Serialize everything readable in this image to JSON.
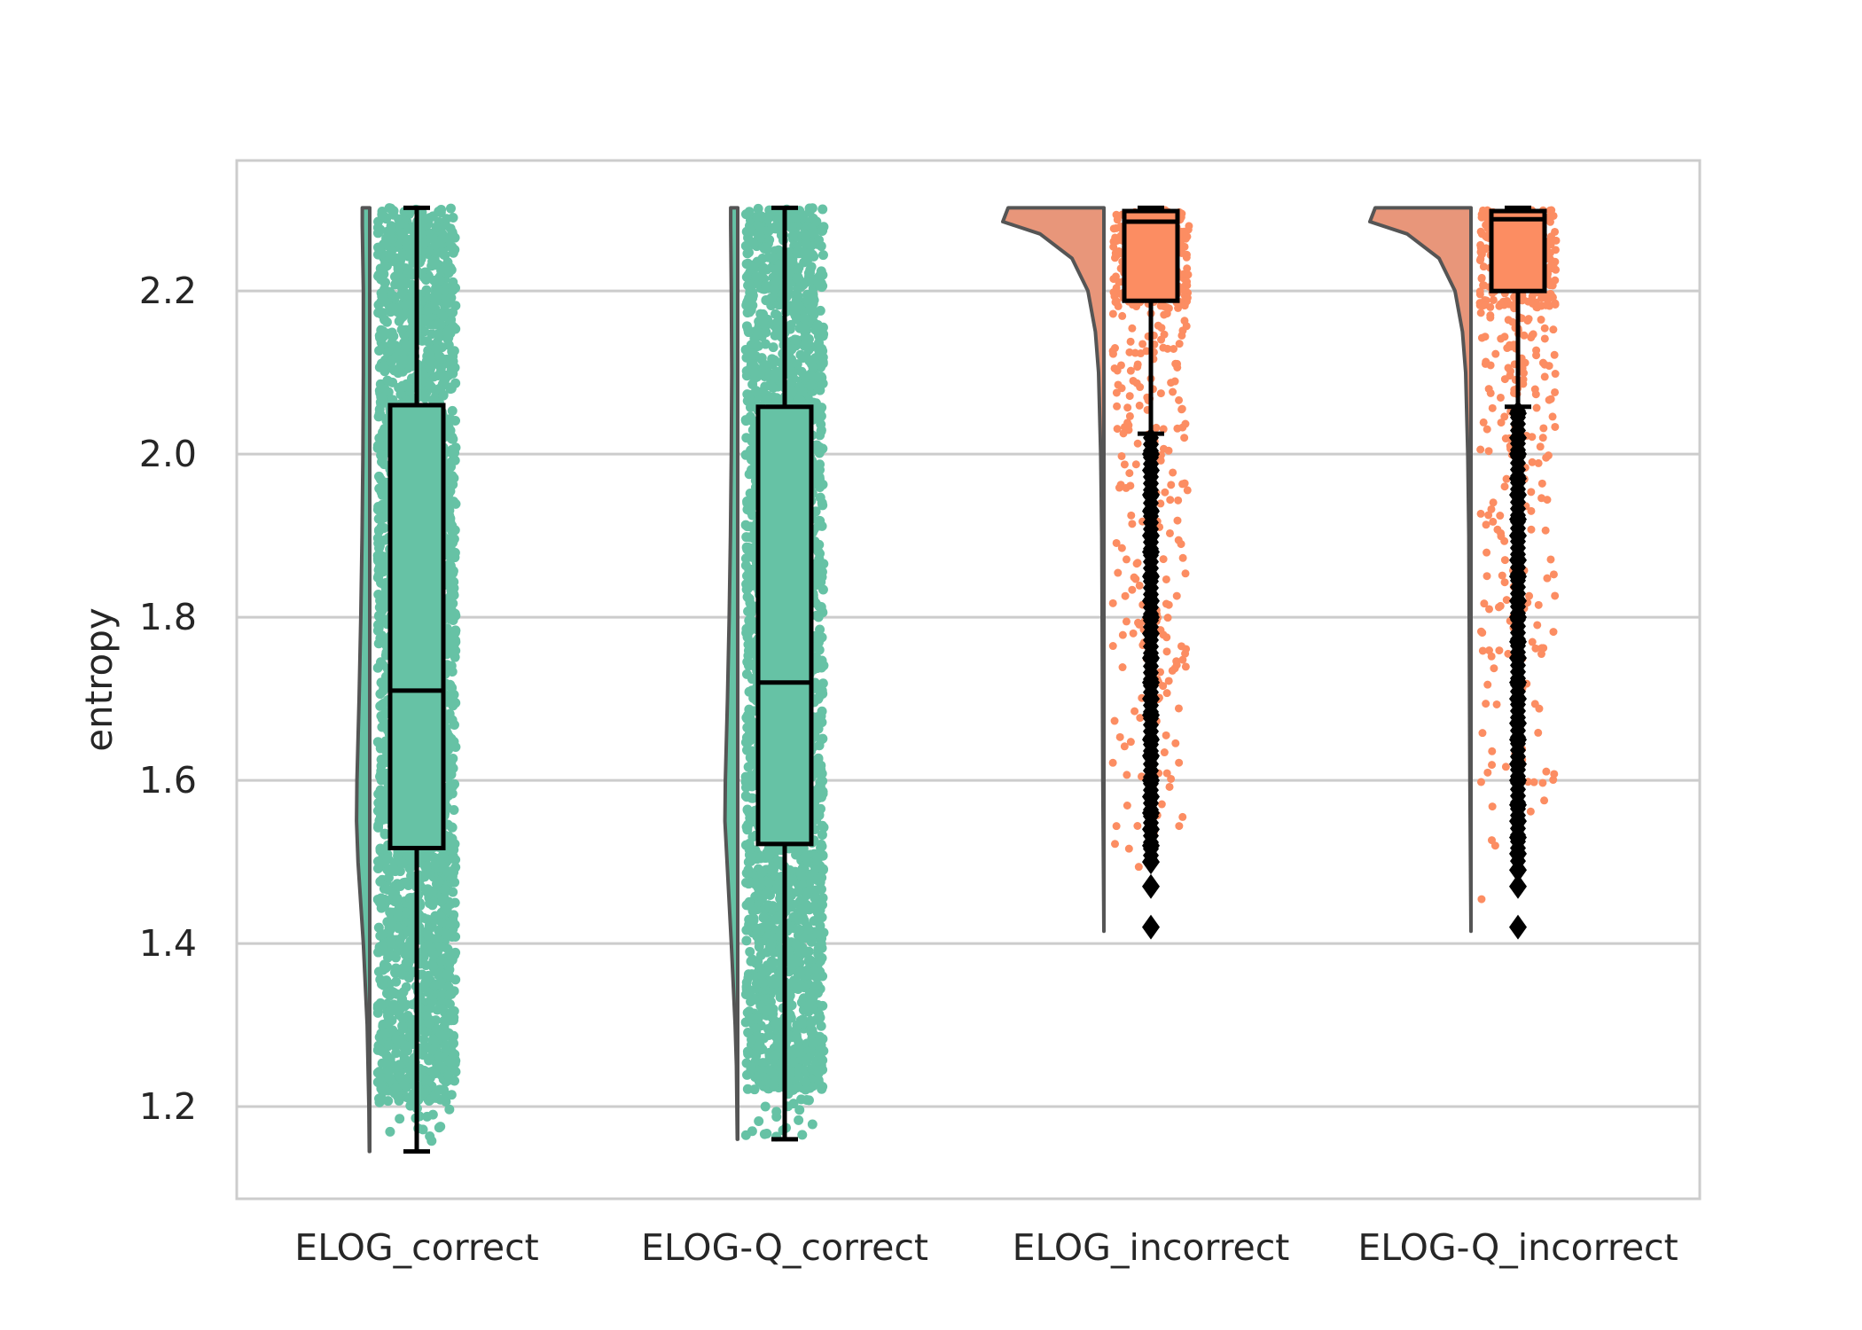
{
  "chart_data": {
    "type": "raincloud",
    "title": "",
    "xlabel": "",
    "ylabel": "entropy",
    "ylim": [
      1.087,
      2.36
    ],
    "yticks": [
      "1.2",
      "1.4",
      "1.6",
      "1.8",
      "2.0",
      "2.2"
    ],
    "grid": "horizontal",
    "legend": "none",
    "categories": [
      "ELOG_correct",
      "ELOG-Q_correct",
      "ELOG_incorrect",
      "ELOG-Q_incorrect"
    ],
    "colors": {
      "correct": "#66c2a5",
      "incorrect": "#fc8d62",
      "violin_incorrect": "#e8967a",
      "violin_edge": "#555555",
      "box_edge": "#000000",
      "grid": "#cccccc",
      "frame": "#cccccc"
    },
    "series": [
      {
        "category": "ELOG_correct",
        "group": "correct",
        "box": {
          "whisker_low": 1.145,
          "q1": 1.517,
          "median": 1.71,
          "q3": 2.06,
          "whisker_high": 2.302
        },
        "outliers": [],
        "points_min": 1.145,
        "points_max": 2.302,
        "density": [
          [
            1.145,
            0.02
          ],
          [
            1.2,
            0.04
          ],
          [
            1.3,
            0.12
          ],
          [
            1.4,
            0.3
          ],
          [
            1.5,
            0.55
          ],
          [
            1.55,
            0.62
          ],
          [
            1.6,
            0.6
          ],
          [
            1.7,
            0.5
          ],
          [
            1.8,
            0.42
          ],
          [
            1.9,
            0.36
          ],
          [
            2.0,
            0.32
          ],
          [
            2.1,
            0.3
          ],
          [
            2.2,
            0.3
          ],
          [
            2.28,
            0.35
          ],
          [
            2.302,
            0.35
          ]
        ]
      },
      {
        "category": "ELOG-Q_correct",
        "group": "correct",
        "box": {
          "whisker_low": 1.16,
          "q1": 1.522,
          "median": 1.72,
          "q3": 2.058,
          "whisker_high": 2.302
        },
        "outliers": [],
        "points_min": 1.16,
        "points_max": 2.302,
        "density": [
          [
            1.16,
            0.02
          ],
          [
            1.25,
            0.06
          ],
          [
            1.3,
            0.12
          ],
          [
            1.4,
            0.3
          ],
          [
            1.5,
            0.5
          ],
          [
            1.55,
            0.6
          ],
          [
            1.6,
            0.58
          ],
          [
            1.7,
            0.48
          ],
          [
            1.8,
            0.4
          ],
          [
            1.9,
            0.34
          ],
          [
            2.0,
            0.3
          ],
          [
            2.1,
            0.28
          ],
          [
            2.2,
            0.3
          ],
          [
            2.28,
            0.33
          ],
          [
            2.302,
            0.33
          ]
        ]
      },
      {
        "category": "ELOG_incorrect",
        "group": "incorrect",
        "box": {
          "whisker_low": 2.025,
          "q1": 2.188,
          "median": 2.285,
          "q3": 2.298,
          "whisker_high": 2.302
        },
        "outliers": [
          2.0,
          1.98,
          1.95,
          1.93,
          1.9,
          1.88,
          1.85,
          1.82,
          1.8,
          1.78,
          1.75,
          1.72,
          1.7,
          1.68,
          1.65,
          1.63,
          1.6,
          1.58,
          1.56,
          1.54,
          1.52,
          1.5,
          1.47,
          1.42
        ],
        "points_min": 1.42,
        "points_max": 2.302,
        "density": [
          [
            1.415,
            0.0
          ],
          [
            1.6,
            0.01
          ],
          [
            1.9,
            0.02
          ],
          [
            2.0,
            0.03
          ],
          [
            2.1,
            0.05
          ],
          [
            2.15,
            0.08
          ],
          [
            2.2,
            0.15
          ],
          [
            2.24,
            0.3
          ],
          [
            2.27,
            0.6
          ],
          [
            2.285,
            0.95
          ],
          [
            2.302,
            0.9
          ]
        ]
      },
      {
        "category": "ELOG-Q_incorrect",
        "group": "incorrect",
        "box": {
          "whisker_low": 2.058,
          "q1": 2.2,
          "median": 2.288,
          "q3": 2.298,
          "whisker_high": 2.302
        },
        "outliers": [
          2.05,
          2.02,
          2.0,
          1.97,
          1.95,
          1.92,
          1.9,
          1.87,
          1.85,
          1.82,
          1.8,
          1.77,
          1.75,
          1.72,
          1.7,
          1.67,
          1.65,
          1.62,
          1.6,
          1.57,
          1.55,
          1.53,
          1.51,
          1.49,
          1.47,
          1.42
        ],
        "points_min": 1.42,
        "points_max": 2.302,
        "density": [
          [
            1.415,
            0.0
          ],
          [
            1.6,
            0.01
          ],
          [
            1.9,
            0.02
          ],
          [
            2.0,
            0.03
          ],
          [
            2.1,
            0.05
          ],
          [
            2.15,
            0.08
          ],
          [
            2.2,
            0.15
          ],
          [
            2.24,
            0.3
          ],
          [
            2.27,
            0.6
          ],
          [
            2.285,
            0.95
          ],
          [
            2.302,
            0.9
          ]
        ]
      }
    ]
  }
}
